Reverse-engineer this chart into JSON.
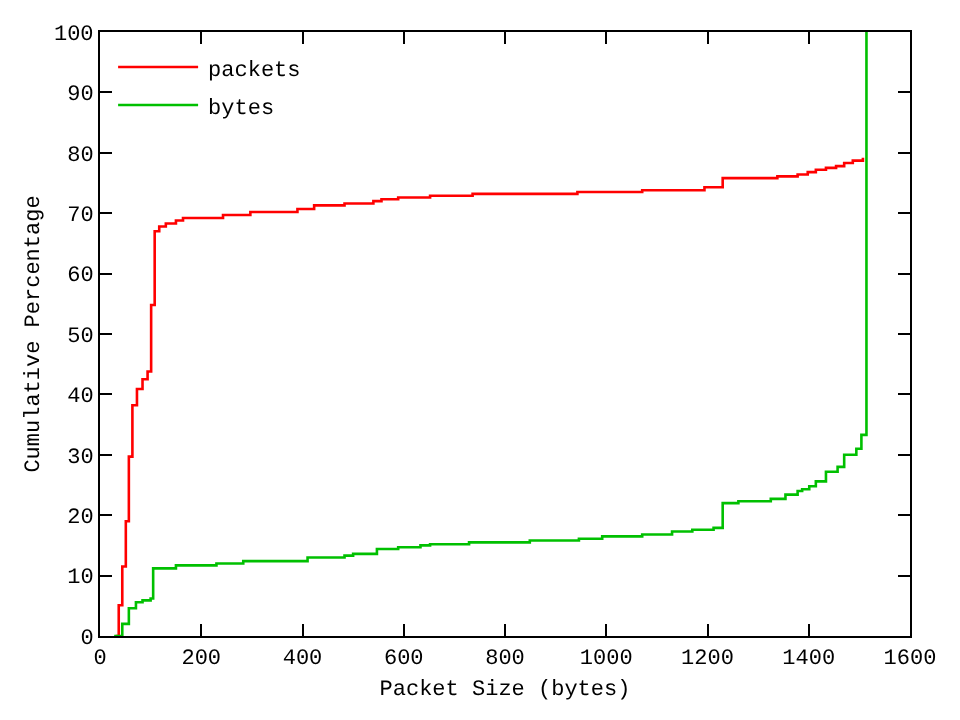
{
  "chart_data": {
    "type": "step",
    "xlabel": "Packet Size (bytes)",
    "ylabel": "Cumulative Percentage",
    "xlim": [
      0,
      1600
    ],
    "ylim": [
      0,
      100
    ],
    "xticks": [
      0,
      200,
      400,
      600,
      800,
      1000,
      1200,
      1400,
      1600
    ],
    "yticks": [
      0,
      10,
      20,
      30,
      40,
      50,
      60,
      70,
      80,
      90,
      100
    ],
    "legend": "top left",
    "marker": "none",
    "line_style": "solid",
    "series": [
      {
        "name": "packets",
        "color": "#ff0000",
        "x": [
          31,
          37,
          44,
          51,
          57,
          64,
          73,
          84,
          94,
          101,
          108,
          117,
          130,
          150,
          164,
          243,
          297,
          390,
          423,
          483,
          540,
          556,
          589,
          652,
          736,
          943,
          1071,
          1194,
          1230,
          1338,
          1378,
          1398,
          1414,
          1434,
          1454,
          1470,
          1487,
          1507
        ],
        "values": [
          0,
          5.1,
          11.5,
          19,
          29.7,
          38.2,
          40.9,
          42.5,
          43.8,
          54.8,
          67,
          67.8,
          68.3,
          68.8,
          69.2,
          69.7,
          70.2,
          70.7,
          71.3,
          71.6,
          72.0,
          72.3,
          72.6,
          72.9,
          73.2,
          73.5,
          73.8,
          74.3,
          75.8,
          76.1,
          76.4,
          76.8,
          77.2,
          77.5,
          77.8,
          78.3,
          78.7,
          79.2
        ]
      },
      {
        "name": "bytes",
        "color": "#00c000",
        "x": [
          28,
          44,
          57,
          71,
          84,
          100,
          105,
          150,
          230,
          283,
          410,
          483,
          500,
          547,
          589,
          633,
          652,
          729,
          849,
          946,
          992,
          1071,
          1130,
          1170,
          1212,
          1230,
          1261,
          1325,
          1354,
          1378,
          1387,
          1401,
          1414,
          1434,
          1457,
          1470,
          1494,
          1504,
          1514
        ],
        "values": [
          0,
          2,
          4.6,
          5.6,
          5.9,
          6.2,
          11.2,
          11.7,
          12.0,
          12.4,
          13.0,
          13.3,
          13.6,
          14.4,
          14.7,
          15.0,
          15.2,
          15.5,
          15.8,
          16.1,
          16.5,
          16.8,
          17.3,
          17.6,
          17.9,
          22.0,
          22.3,
          22.7,
          23.4,
          24.0,
          24.3,
          24.8,
          25.6,
          27.2,
          28.0,
          30.0,
          31.0,
          33.3,
          100
        ]
      }
    ]
  }
}
